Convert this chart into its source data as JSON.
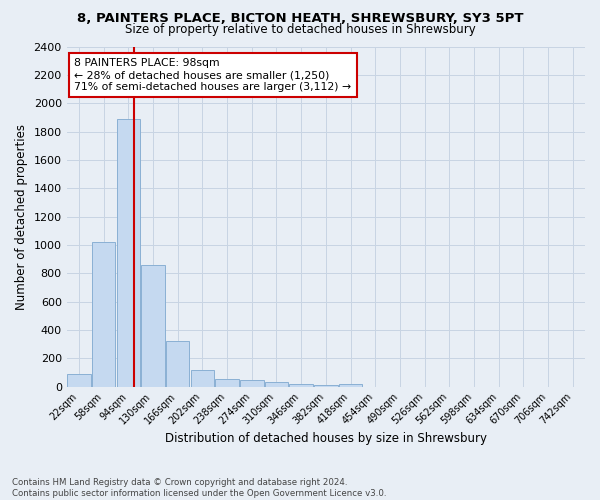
{
  "title": "8, PAINTERS PLACE, BICTON HEATH, SHREWSBURY, SY3 5PT",
  "subtitle": "Size of property relative to detached houses in Shrewsbury",
  "xlabel": "Distribution of detached houses by size in Shrewsbury",
  "ylabel": "Number of detached properties",
  "footnote1": "Contains HM Land Registry data © Crown copyright and database right 2024.",
  "footnote2": "Contains public sector information licensed under the Open Government Licence v3.0.",
  "bar_labels": [
    "22sqm",
    "58sqm",
    "94sqm",
    "130sqm",
    "166sqm",
    "202sqm",
    "238sqm",
    "274sqm",
    "310sqm",
    "346sqm",
    "382sqm",
    "418sqm",
    "454sqm",
    "490sqm",
    "526sqm",
    "562sqm",
    "598sqm",
    "634sqm",
    "670sqm",
    "706sqm",
    "742sqm"
  ],
  "bar_values": [
    90,
    1020,
    1890,
    860,
    320,
    115,
    55,
    45,
    30,
    20,
    15,
    20,
    0,
    0,
    0,
    0,
    0,
    0,
    0,
    0,
    0
  ],
  "bar_color": "#c5d9f0",
  "bar_edge_color": "#8ab0d4",
  "ylim": [
    0,
    2400
  ],
  "yticks": [
    0,
    200,
    400,
    600,
    800,
    1000,
    1200,
    1400,
    1600,
    1800,
    2000,
    2200,
    2400
  ],
  "red_line_x": 2.22,
  "annotation_text_line1": "8 PAINTERS PLACE: 98sqm",
  "annotation_text_line2": "← 28% of detached houses are smaller (1,250)",
  "annotation_text_line3": "71% of semi-detached houses are larger (3,112) →",
  "annotation_box_color": "#ffffff",
  "annotation_box_edge": "#cc0000",
  "red_line_color": "#cc0000",
  "grid_color": "#c8d4e3",
  "background_color": "#e8eef5"
}
